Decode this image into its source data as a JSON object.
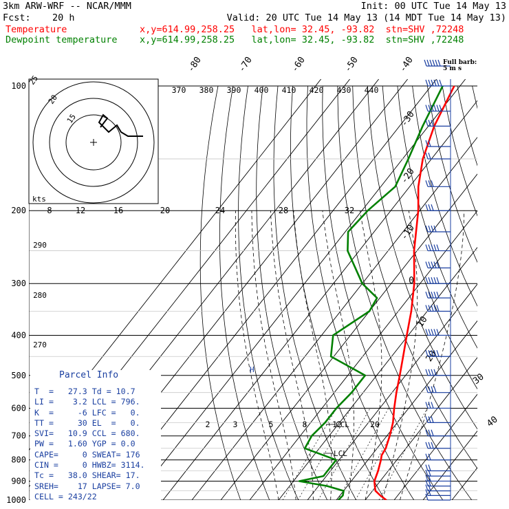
{
  "header": {
    "model": "3km ARW-WRF -- NCAR/MMM",
    "init": "Init: 00 UTC Tue 14 May 13",
    "fcst_label": "Fcst:",
    "fcst_value": "20 h",
    "valid": "Valid: 20 UTC Tue 14 May 13 (14 MDT Tue 14 May 13)",
    "temp_label": "Temperature",
    "temp_loc": "x,y=614.99,258.25   lat,lon= 32.45, -93.82  stn=SHV ,72248",
    "dew_label": "Dewpoint temperature",
    "dew_loc": "x,y=614.99,258.25   lat,lon= 32.45, -93.82  stn=SHV ,72248"
  },
  "barb_key": {
    "title": "Full barb:",
    "subtitle": "5 m s"
  },
  "hodograph": {
    "units": "kts",
    "rings": [
      "15",
      "20",
      "25"
    ]
  },
  "parcel_info": {
    "title": "Parcel Info",
    "rows": [
      "T  =   27.3 Td = 10.7",
      "LI =    3.2 LCL = 796.",
      "K  =     -6 LFC =   0.",
      "TT =     30 EL  =   0.",
      "SVI=   10.9 CCL = 680.",
      "PW =   1.60 YGP = 0.0",
      "CAPE=     0 SWEAT= 176",
      "CIN =     0 HWBZ= 3114.",
      "Tc =   38.0 SHEAR= 17.",
      "SREH=    17 LAPSE= 7.0",
      "CELL = 243/22"
    ]
  },
  "labels": {
    "lcl": "LCL",
    "ccl": "CCL",
    "h": "H"
  },
  "chart_data": {
    "type": "line",
    "title": "",
    "ylabel": "",
    "y_scale": "log-pressure",
    "ylim": [
      1000,
      100
    ],
    "pressure_ticks": [
      "100",
      "200",
      "300",
      "400",
      "500",
      "600",
      "700",
      "800",
      "900",
      "1000"
    ],
    "isotherm_labels": [
      "-80",
      "-70",
      "-60",
      "-50",
      "-40",
      "-30",
      "-20",
      "-10",
      "0",
      "10",
      "20",
      "30",
      "40"
    ],
    "theta_labels": [
      "370",
      "380",
      "390",
      "400",
      "410",
      "420",
      "430",
      "440"
    ],
    "theta_side_labels": [
      "290",
      "280",
      "270"
    ],
    "mixing_ratio_labels": [
      "2",
      "3",
      "5",
      "8",
      "12",
      "20"
    ],
    "hodo_speed_labels": [
      "8",
      "12",
      "16",
      "20",
      "24",
      "28",
      "32"
    ],
    "series": [
      {
        "name": "Temperature",
        "color": "#ff0000",
        "points": [
          [
            1000,
            27.3
          ],
          [
            975,
            24
          ],
          [
            950,
            21
          ],
          [
            925,
            19.5
          ],
          [
            900,
            18
          ],
          [
            850,
            16.5
          ],
          [
            800,
            14.5
          ],
          [
            780,
            13.5
          ],
          [
            750,
            13
          ],
          [
            700,
            11
          ],
          [
            650,
            8.5
          ],
          [
            600,
            5
          ],
          [
            550,
            1.5
          ],
          [
            500,
            -2
          ],
          [
            450,
            -6
          ],
          [
            400,
            -10.5
          ],
          [
            350,
            -15.5
          ],
          [
            300,
            -22
          ],
          [
            250,
            -31
          ],
          [
            200,
            -40.5
          ],
          [
            175,
            -47
          ],
          [
            150,
            -53
          ],
          [
            125,
            -58
          ],
          [
            100,
            -62
          ]
        ]
      },
      {
        "name": "Dewpoint temperature",
        "color": "#008000",
        "points": [
          [
            1000,
            10.7
          ],
          [
            975,
            11
          ],
          [
            950,
            10
          ],
          [
            925,
            3
          ],
          [
            900,
            -8
          ],
          [
            875,
            -1
          ],
          [
            850,
            -1
          ],
          [
            800,
            -1
          ],
          [
            750,
            -15
          ],
          [
            700,
            -16
          ],
          [
            650,
            -15
          ],
          [
            600,
            -15
          ],
          [
            550,
            -14
          ],
          [
            500,
            -14
          ],
          [
            450,
            -31
          ],
          [
            400,
            -36
          ],
          [
            350,
            -30
          ],
          [
            325,
            -31
          ],
          [
            300,
            -40
          ],
          [
            250,
            -54
          ],
          [
            225,
            -59
          ],
          [
            200,
            -58
          ],
          [
            175,
            -55
          ],
          [
            150,
            -58
          ],
          [
            125,
            -62
          ],
          [
            100,
            -66
          ]
        ]
      }
    ],
    "wind_barbs": [
      [
        1000,
        5
      ],
      [
        975,
        10
      ],
      [
        950,
        10
      ],
      [
        925,
        10
      ],
      [
        900,
        10
      ],
      [
        875,
        10
      ],
      [
        850,
        10
      ],
      [
        800,
        10
      ],
      [
        750,
        15
      ],
      [
        700,
        15
      ],
      [
        650,
        15
      ],
      [
        600,
        15
      ],
      [
        550,
        20
      ],
      [
        500,
        20
      ],
      [
        450,
        25
      ],
      [
        400,
        25
      ],
      [
        350,
        25
      ],
      [
        325,
        25
      ],
      [
        300,
        25
      ],
      [
        275,
        25
      ],
      [
        250,
        25
      ],
      [
        225,
        20
      ],
      [
        200,
        15
      ],
      [
        175,
        15
      ],
      [
        150,
        10
      ],
      [
        140,
        10
      ],
      [
        125,
        15
      ],
      [
        115,
        30
      ],
      [
        100,
        30
      ]
    ]
  }
}
